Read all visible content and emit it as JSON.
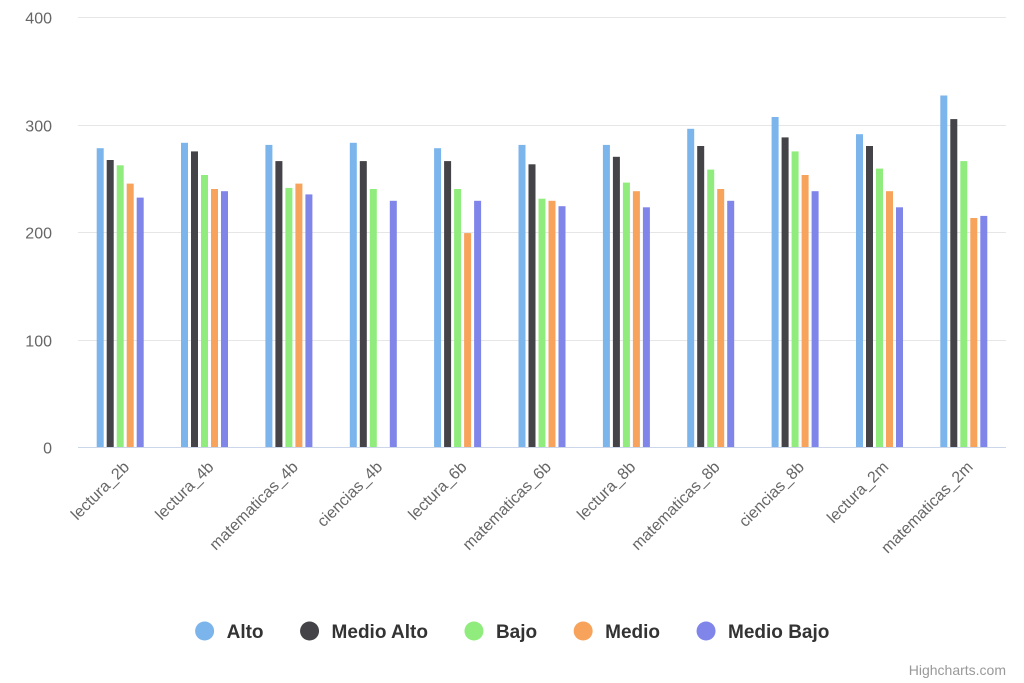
{
  "chart_data": {
    "type": "bar",
    "categories": [
      "lectura_2b",
      "lectura_4b",
      "matematicas_4b",
      "ciencias_4b",
      "lectura_6b",
      "matematicas_6b",
      "lectura_8b",
      "matematicas_8b",
      "ciencias_8b",
      "lectura_2m",
      "matematicas_2m"
    ],
    "series": [
      {
        "name": "Alto",
        "color": "#7cb5ec",
        "values": [
          278,
          283,
          281,
          283,
          278,
          281,
          281,
          296,
          307,
          291,
          327
        ]
      },
      {
        "name": "Medio Alto",
        "color": "#434348",
        "values": [
          267,
          275,
          266,
          266,
          266,
          263,
          270,
          280,
          288,
          280,
          305
        ]
      },
      {
        "name": "Bajo",
        "color": "#90ed7d",
        "values": [
          262,
          253,
          241,
          240,
          240,
          231,
          246,
          258,
          275,
          259,
          266
        ]
      },
      {
        "name": "Medio",
        "color": "#f7a35c",
        "values": [
          245,
          240,
          245,
          null,
          199,
          229,
          238,
          240,
          253,
          238,
          213
        ]
      },
      {
        "name": "Medio Bajo",
        "color": "#8085e9",
        "values": [
          232,
          238,
          235,
          229,
          229,
          224,
          223,
          229,
          238,
          223,
          215
        ]
      }
    ],
    "yticks": [
      0,
      100,
      200,
      300,
      400
    ],
    "ylim": [
      0,
      400
    ],
    "grid": true,
    "legend_position": "bottom-center",
    "credits": "Highcharts.com"
  }
}
